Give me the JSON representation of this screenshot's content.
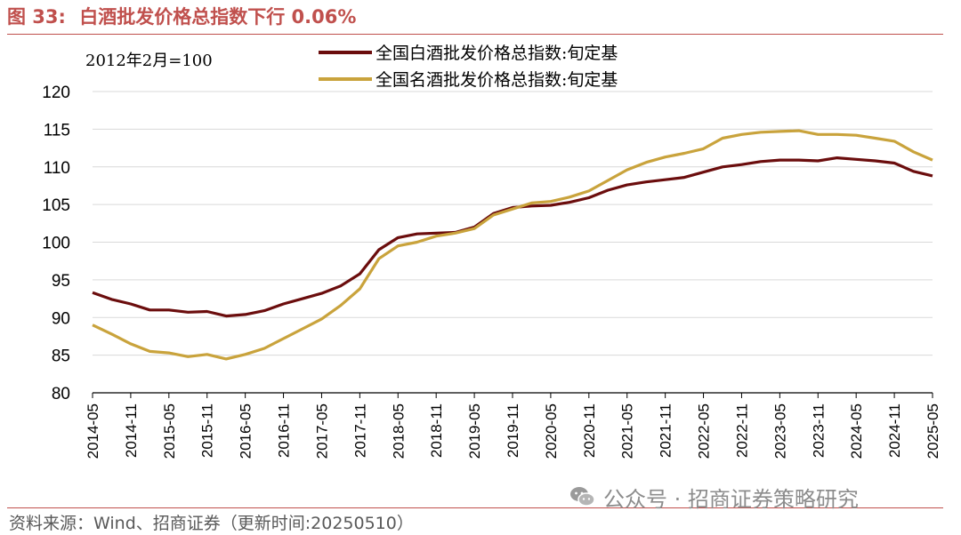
{
  "figure": {
    "number": "图 33:",
    "title": "白酒批发价格总指数下行 0.06%"
  },
  "source_note": {
    "source": "资料来源：Wind、招商证券（更新时间:20250510）",
    "watermark": "公众号 · 招商证券策略研究",
    "watermark_icon": "wechat-icon"
  },
  "chart_data": {
    "type": "line",
    "base_note": "2012年2月=100",
    "ylim": [
      80,
      120
    ],
    "yticks": [
      80,
      85,
      90,
      95,
      100,
      105,
      110,
      115,
      120
    ],
    "xticks": [
      "2014-05",
      "2014-11",
      "2015-05",
      "2015-11",
      "2016-05",
      "2016-11",
      "2017-05",
      "2017-11",
      "2018-05",
      "2018-11",
      "2019-05",
      "2019-11",
      "2020-05",
      "2020-11",
      "2021-05",
      "2021-11",
      "2022-05",
      "2022-11",
      "2023-05",
      "2023-11",
      "2024-05",
      "2024-11",
      "2025-05"
    ],
    "grid": "horizontal",
    "legend_position": "top-center",
    "colors": {
      "baijiu_total": "#6b0d0d",
      "mingjiu": "#c9a33c",
      "grid": "#d9d9d9",
      "axis": "#000000"
    },
    "series": [
      {
        "name": "全国白酒批发价格总指数:旬定基",
        "color": "#6b0d0d",
        "x": [
          "2014-05",
          "2014-08",
          "2014-11",
          "2015-02",
          "2015-05",
          "2015-08",
          "2015-11",
          "2016-02",
          "2016-05",
          "2016-08",
          "2016-11",
          "2017-02",
          "2017-05",
          "2017-08",
          "2017-11",
          "2018-02",
          "2018-05",
          "2018-08",
          "2018-11",
          "2019-02",
          "2019-05",
          "2019-08",
          "2019-11",
          "2020-02",
          "2020-05",
          "2020-08",
          "2020-11",
          "2021-02",
          "2021-05",
          "2021-08",
          "2021-11",
          "2022-02",
          "2022-05",
          "2022-08",
          "2022-11",
          "2023-02",
          "2023-05",
          "2023-08",
          "2023-11",
          "2024-02",
          "2024-05",
          "2024-08",
          "2024-11",
          "2025-02",
          "2025-05"
        ],
        "values": [
          93.3,
          92.4,
          91.8,
          91.0,
          91.0,
          90.7,
          90.8,
          90.2,
          90.4,
          90.9,
          91.8,
          92.5,
          93.2,
          94.2,
          95.8,
          99.0,
          100.6,
          101.1,
          101.2,
          101.3,
          102.0,
          103.8,
          104.6,
          104.8,
          104.9,
          105.3,
          105.9,
          106.9,
          107.6,
          108.0,
          108.3,
          108.6,
          109.3,
          110.0,
          110.3,
          110.7,
          110.9,
          110.9,
          110.8,
          111.2,
          111.0,
          110.8,
          110.5,
          109.4,
          108.8
        ]
      },
      {
        "name": "全国名酒批发价格总指数:旬定基",
        "color": "#c9a33c",
        "x": [
          "2014-05",
          "2014-08",
          "2014-11",
          "2015-02",
          "2015-05",
          "2015-08",
          "2015-11",
          "2016-02",
          "2016-05",
          "2016-08",
          "2016-11",
          "2017-02",
          "2017-05",
          "2017-08",
          "2017-11",
          "2018-02",
          "2018-05",
          "2018-08",
          "2018-11",
          "2019-02",
          "2019-05",
          "2019-08",
          "2019-11",
          "2020-02",
          "2020-05",
          "2020-08",
          "2020-11",
          "2021-02",
          "2021-05",
          "2021-08",
          "2021-11",
          "2022-02",
          "2022-05",
          "2022-08",
          "2022-11",
          "2023-02",
          "2023-05",
          "2023-08",
          "2023-11",
          "2024-02",
          "2024-05",
          "2024-08",
          "2024-11",
          "2025-02",
          "2025-05"
        ],
        "values": [
          89.0,
          87.8,
          86.5,
          85.5,
          85.3,
          84.8,
          85.1,
          84.5,
          85.1,
          85.9,
          87.2,
          88.5,
          89.8,
          91.6,
          93.8,
          97.8,
          99.5,
          100.0,
          100.8,
          101.2,
          101.8,
          103.6,
          104.4,
          105.2,
          105.4,
          106.0,
          106.8,
          108.2,
          109.6,
          110.6,
          111.3,
          111.8,
          112.4,
          113.8,
          114.3,
          114.6,
          114.7,
          114.8,
          114.3,
          114.3,
          114.2,
          113.8,
          113.4,
          112.0,
          110.9
        ]
      }
    ]
  }
}
